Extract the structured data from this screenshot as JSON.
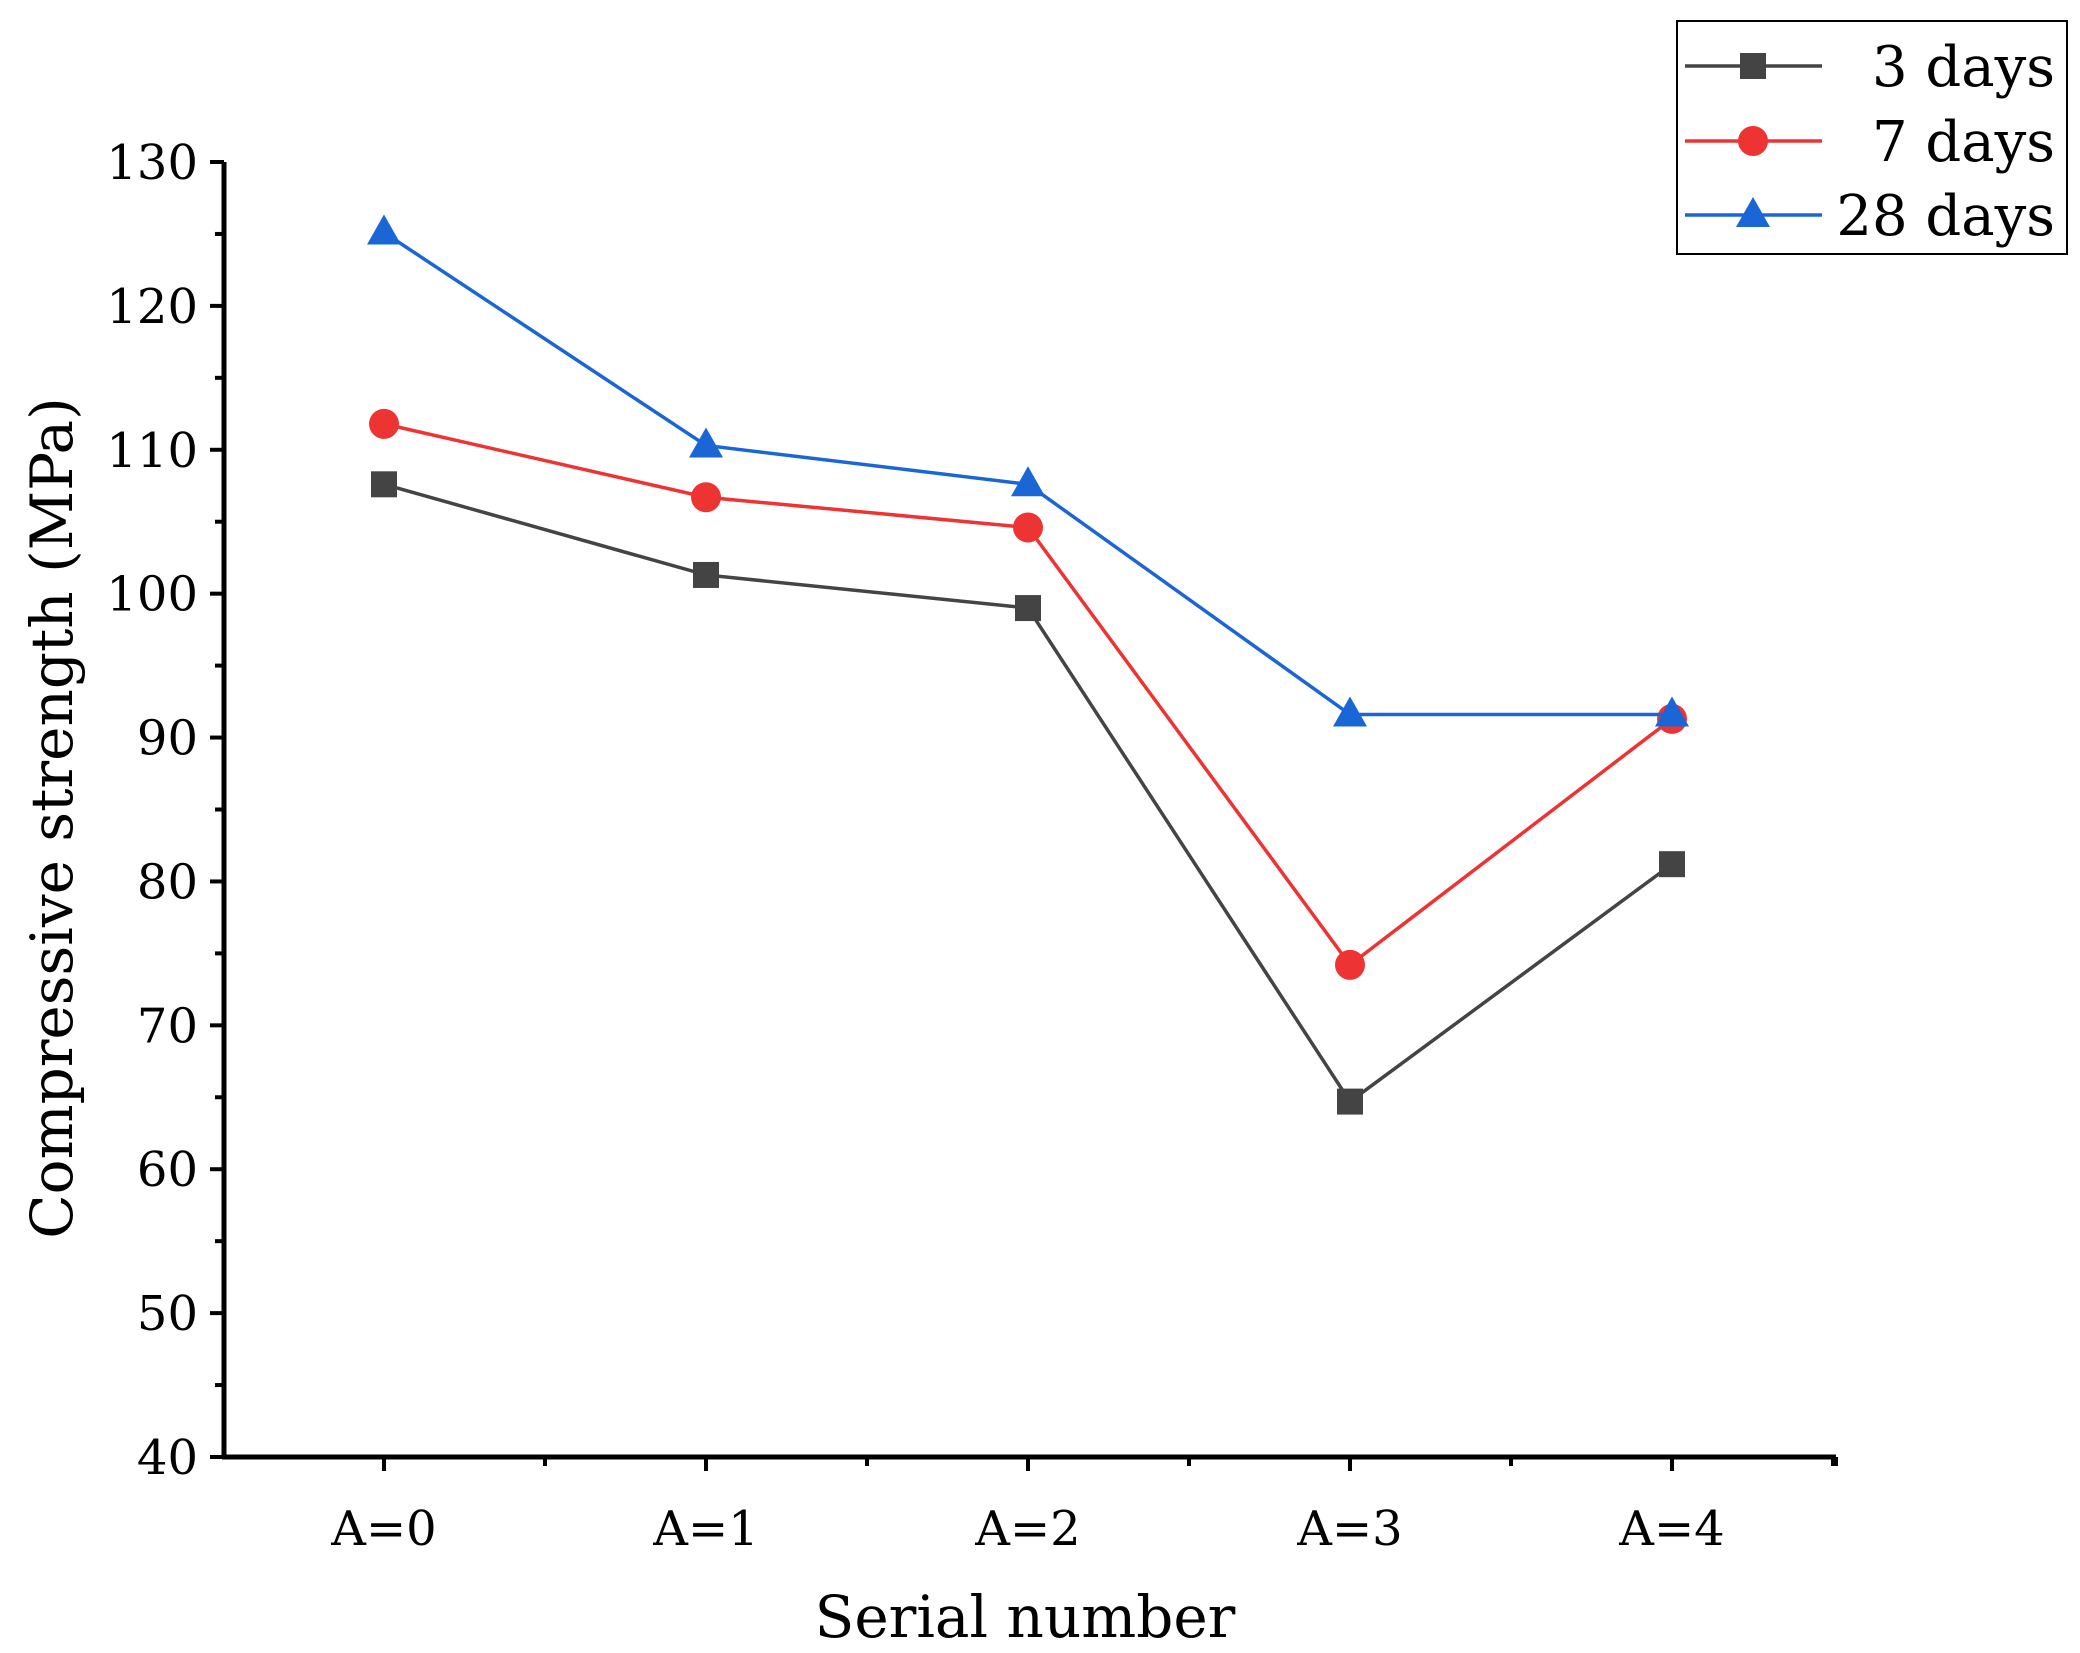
{
  "chart_data": {
    "type": "line",
    "title": "",
    "xlabel": "Serial number",
    "ylabel": "Compressive strength (MPa)",
    "categories": [
      "A=0",
      "A=1",
      "A=2",
      "A=3",
      "A=4"
    ],
    "ylim": [
      40,
      130
    ],
    "yticks": [
      40,
      50,
      60,
      70,
      80,
      90,
      100,
      110,
      120,
      130
    ],
    "grid": false,
    "legend_position": "top-right",
    "series": [
      {
        "name": "3 days",
        "color": "#444444",
        "marker": "square",
        "values": [
          107.6,
          101.3,
          99.0,
          64.7,
          81.2
        ]
      },
      {
        "name": "7 days",
        "color": "#ee3333",
        "marker": "circle",
        "values": [
          111.8,
          106.7,
          104.6,
          74.2,
          91.3
        ]
      },
      {
        "name": "28 days",
        "color": "#1a66d6",
        "marker": "triangle",
        "values": [
          125.1,
          110.3,
          107.6,
          91.6,
          91.6
        ]
      }
    ]
  }
}
